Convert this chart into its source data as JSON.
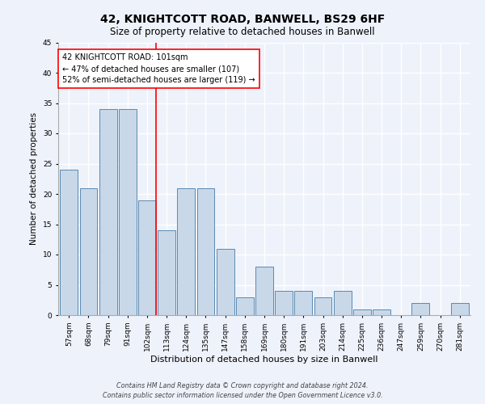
{
  "title1": "42, KNIGHTCOTT ROAD, BANWELL, BS29 6HF",
  "title2": "Size of property relative to detached houses in Banwell",
  "xlabel": "Distribution of detached houses by size in Banwell",
  "ylabel": "Number of detached properties",
  "bar_labels": [
    "57sqm",
    "68sqm",
    "79sqm",
    "91sqm",
    "102sqm",
    "113sqm",
    "124sqm",
    "135sqm",
    "147sqm",
    "158sqm",
    "169sqm",
    "180sqm",
    "191sqm",
    "203sqm",
    "214sqm",
    "225sqm",
    "236sqm",
    "247sqm",
    "259sqm",
    "270sqm",
    "281sqm"
  ],
  "bar_values": [
    24,
    21,
    34,
    34,
    19,
    14,
    21,
    21,
    11,
    3,
    8,
    4,
    4,
    3,
    4,
    1,
    1,
    0,
    2,
    0,
    2
  ],
  "bar_color": "#c8d8e8",
  "bar_edge_color": "#5a8ab0",
  "vline_index": 4,
  "vline_color": "red",
  "annotation_line1": "42 KNIGHTCOTT ROAD: 101sqm",
  "annotation_line2": "← 47% of detached houses are smaller (107)",
  "annotation_line3": "52% of semi-detached houses are larger (119) →",
  "annotation_box_color": "white",
  "annotation_box_edge": "red",
  "ylim": [
    0,
    45
  ],
  "yticks": [
    0,
    5,
    10,
    15,
    20,
    25,
    30,
    35,
    40,
    45
  ],
  "footer1": "Contains HM Land Registry data © Crown copyright and database right 2024.",
  "footer2": "Contains public sector information licensed under the Open Government Licence v3.0.",
  "bg_color": "#eef2fb",
  "grid_color": "white",
  "title1_fontsize": 10,
  "title2_fontsize": 8.5,
  "xlabel_fontsize": 8,
  "ylabel_fontsize": 7.5,
  "tick_fontsize": 6.5,
  "annotation_fontsize": 7,
  "footer_fontsize": 5.8
}
